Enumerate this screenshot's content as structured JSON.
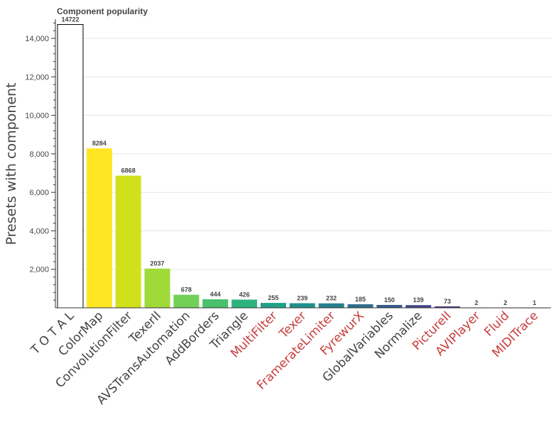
{
  "chart_data": {
    "type": "bar",
    "title": "Component popularity",
    "ylabel": "Presets with component",
    "xlabel": "",
    "ylim": [
      0,
      15000
    ],
    "yticks": [
      2000,
      4000,
      6000,
      8000,
      10000,
      12000,
      14000
    ],
    "ytick_labels": [
      "2,000",
      "4,000",
      "6,000",
      "8,000",
      "10,000",
      "12,000",
      "14,000"
    ],
    "grid": "horizontal",
    "categories": [
      "T O T A L",
      "ColorMap",
      "ConvolutionFilter",
      "TexerII",
      "AVSTransAutomation",
      "AddBorders",
      "Triangle",
      "MultiFilter",
      "Texer",
      "FramerateLimiter",
      "FyrewurX",
      "GlobalVariables",
      "Normalize",
      "PictureII",
      "AVIPlayer",
      "Fluid",
      "MIDITrace"
    ],
    "values": [
      14722,
      8284,
      6868,
      2037,
      678,
      444,
      426,
      255,
      239,
      232,
      185,
      150,
      139,
      73,
      2,
      2,
      1
    ],
    "data_labels": [
      "14722",
      "8284",
      "6868",
      "2037",
      "678",
      "444",
      "426",
      "255",
      "239",
      "232",
      "185",
      "150",
      "139",
      "73",
      "2",
      "2",
      "1"
    ],
    "bar_colors": [
      "#ffffff",
      "#fde725",
      "#d0e11c",
      "#a0da39",
      "#73d056",
      "#4ac16d",
      "#2db27d",
      "#1fa187",
      "#21918c",
      "#277f8e",
      "#2e6e8e",
      "#365c8d",
      "#3f4788",
      "#46327e",
      "#48186a",
      "#440154",
      "#440154"
    ],
    "label_colors": [
      "#444444",
      "#444444",
      "#444444",
      "#444444",
      "#444444",
      "#444444",
      "#444444",
      "#c83c3c",
      "#c83c3c",
      "#c83c3c",
      "#c83c3c",
      "#444444",
      "#444444",
      "#c83c3c",
      "#c83c3c",
      "#c83c3c",
      "#c83c3c"
    ],
    "legend": "none"
  }
}
